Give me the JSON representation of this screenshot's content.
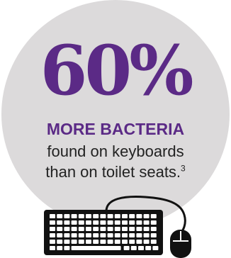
{
  "infographic": {
    "stat_value": "60%",
    "headline": "MORE BACTERIA",
    "line1": "found on keyboards",
    "line2": "than on toilet seats.",
    "footnote_ref": "3",
    "colors": {
      "accent_purple": "#5b2a86",
      "circle_gray": "#dcdadb",
      "body_text": "#222222",
      "illustration": "#111111"
    },
    "icons": [
      "keyboard-icon",
      "mouse-icon"
    ]
  }
}
